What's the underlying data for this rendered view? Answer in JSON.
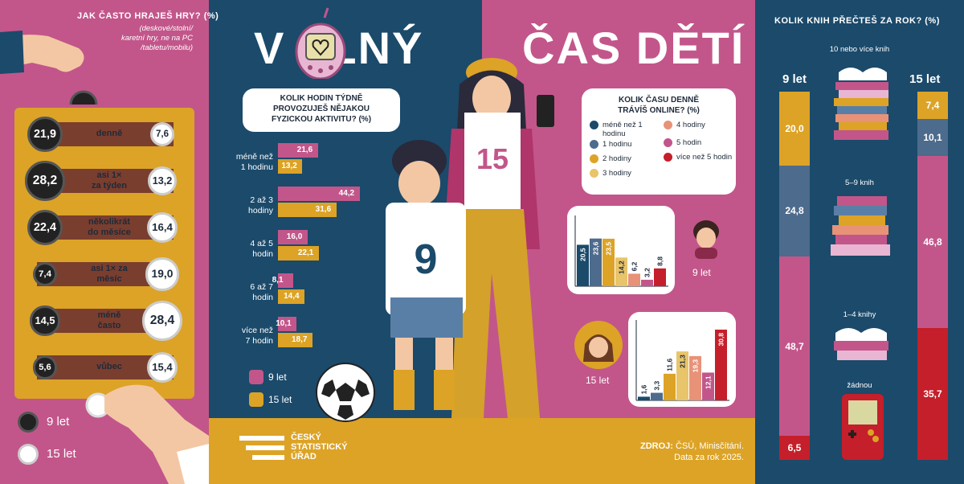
{
  "colors": {
    "navy": "#1b4a6b",
    "pink": "#c2568a",
    "gold": "#dca326",
    "red": "#c41f2a",
    "dark": "#222222",
    "light": "#ffffff"
  },
  "title": {
    "part1": "V",
    "part2": "LNÝ",
    "part3": "ČAS DĚTÍ"
  },
  "games": {
    "title": "JAK ČASTO HRAJEŠ HRY? (%)",
    "subtitle_lines": [
      "(deskové/stolní/",
      "karetní hry, ne na PC",
      "/tabletu/mobilu)"
    ],
    "legend": {
      "age9": "9 let",
      "age15": "15 let"
    }
  },
  "activity": {
    "question_lines": [
      "KOLIK HODIN TÝDNĚ",
      "PROVOZUJEŠ NĚJAKOU",
      "FYZICKOU AKTIVITU? (%)"
    ],
    "legend": {
      "age9": "9 let",
      "age15": "15 let"
    }
  },
  "online": {
    "question_lines": [
      "KOLIK ČASU DENNĚ",
      "TRÁVÍŠ ONLINE? (%)"
    ],
    "legend": [
      {
        "label": "méně než 1 hodinu",
        "color": "#1b4a6b"
      },
      {
        "label": "1 hodinu",
        "color": "#4d6b8c"
      },
      {
        "label": "2 hodiny",
        "color": "#dca326"
      },
      {
        "label": "3 hodiny",
        "color": "#e8c46a"
      },
      {
        "label": "4 hodiny",
        "color": "#e89278"
      },
      {
        "label": "5 hodin",
        "color": "#c2568a"
      },
      {
        "label": "více než 5 hodin",
        "color": "#c41f2a"
      }
    ],
    "age9_label": "9 let",
    "age15_label": "15 let"
  },
  "books": {
    "title": "KOLIK KNIH PŘEČTEŠ ZA ROK? (%)",
    "col9": "9 let",
    "col15": "15 let",
    "category_labels": [
      "10 nebo více knih",
      "5–9 knih",
      "1–4 knihy",
      "žádnou"
    ]
  },
  "footer": {
    "logo_lines": [
      "ČESKÝ",
      "STATISTICKÝ",
      "ÚŘAD"
    ],
    "source_label": "ZDROJ:",
    "source_text": "ČSÚ, Minisčítání.",
    "data_year": "Data za rok 2025."
  },
  "characters": {
    "kid9_shirt": "9",
    "kid15_shirt": "15"
  },
  "chart_data": [
    {
      "type": "table",
      "title": "JAK ČASTO HRAJEŠ HRY? (%)",
      "categories": [
        "denně",
        "asi 1× za týden",
        "několikrát do měsíce",
        "asi 1× za měsíc",
        "méně často",
        "vůbec"
      ],
      "series": [
        {
          "name": "9 let",
          "values": [
            21.9,
            28.2,
            22.4,
            7.4,
            14.5,
            5.6
          ]
        },
        {
          "name": "15 let",
          "values": [
            7.6,
            13.2,
            16.4,
            19.0,
            28.4,
            15.4
          ]
        }
      ],
      "labels9": [
        "21,9",
        "28,2",
        "22,4",
        "7,4",
        "14,5",
        "5,6"
      ],
      "labels15": [
        "7,6",
        "13,2",
        "16,4",
        "19,0",
        "28,4",
        "15,4"
      ],
      "cat_lines": [
        [
          "denně"
        ],
        [
          "asi 1×",
          "za týden"
        ],
        [
          "několikrát",
          "do měsíce"
        ],
        [
          "asi 1× za",
          "měsíc"
        ],
        [
          "méně",
          "často"
        ],
        [
          "vůbec"
        ]
      ]
    },
    {
      "type": "bar",
      "orientation": "horizontal",
      "title": "KOLIK HODIN TÝDNĚ PROVOZUJEŠ NĚJAKOU FYZICKOU AKTIVITU? (%)",
      "categories": [
        "méně než 1 hodinu",
        "2 až 3 hodiny",
        "4 až 5 hodin",
        "6 až 7 hodin",
        "více než 7 hodin"
      ],
      "cat_lines": [
        [
          "méně než",
          "1 hodinu"
        ],
        [
          "2 až 3",
          "hodiny"
        ],
        [
          "4 až 5",
          "hodin"
        ],
        [
          "6 až 7",
          "hodin"
        ],
        [
          "více než",
          "7 hodin"
        ]
      ],
      "series": [
        {
          "name": "9 let",
          "values": [
            21.6,
            44.2,
            16.0,
            8.1,
            10.1
          ],
          "labels": [
            "21,6",
            "44,2",
            "16,0",
            "8,1",
            "10,1"
          ]
        },
        {
          "name": "15 let",
          "values": [
            13.2,
            31.6,
            22.1,
            14.4,
            18.7
          ],
          "labels": [
            "13,2",
            "31,6",
            "22,1",
            "14,4",
            "18,7"
          ]
        }
      ],
      "xlim": [
        0,
        50
      ]
    },
    {
      "type": "bar",
      "title": "KOLIK ČASU DENNĚ TRÁVÍŠ ONLINE? (%) — 9 let",
      "categories": [
        "méně než 1 hodinu",
        "1 hodinu",
        "2 hodiny",
        "3 hodiny",
        "4 hodiny",
        "5 hodin",
        "více než 5 hodin"
      ],
      "values": [
        20.5,
        23.6,
        23.5,
        14.2,
        6.2,
        3.2,
        8.8
      ],
      "labels": [
        "20,5",
        "23,6",
        "23,5",
        "14,2",
        "6,2",
        "3,2",
        "8,8"
      ],
      "ylim": [
        0,
        35
      ]
    },
    {
      "type": "bar",
      "title": "KOLIK ČASU DENNĚ TRÁVÍŠ ONLINE? (%) — 15 let",
      "categories": [
        "méně než 1 hodinu",
        "1 hodinu",
        "2 hodiny",
        "3 hodiny",
        "4 hodiny",
        "5 hodin",
        "více než 5 hodin"
      ],
      "values": [
        1.6,
        3.3,
        11.6,
        21.3,
        19.3,
        12.1,
        30.8
      ],
      "labels": [
        "1,6",
        "3,3",
        "11,6",
        "21,3",
        "19,3",
        "12,1",
        "30,8"
      ],
      "ylim": [
        0,
        35
      ]
    },
    {
      "type": "bar",
      "stacked": true,
      "title": "KOLIK KNIH PŘEČTEŠ ZA ROK? (%)",
      "categories": [
        "10 nebo více knih",
        "5–9 knih",
        "1–4 knihy",
        "žádnou"
      ],
      "series": [
        {
          "name": "9 let",
          "values": [
            20.0,
            24.8,
            48.7,
            6.5
          ],
          "labels": [
            "20,0",
            "24,8",
            "48,7",
            "6,5"
          ]
        },
        {
          "name": "15 let",
          "values": [
            7.4,
            10.1,
            46.8,
            35.7
          ],
          "labels": [
            "7,4",
            "10,1",
            "46,8",
            "35,7"
          ]
        }
      ],
      "colors": [
        "#dca326",
        "#4d6b8c",
        "#c2568a",
        "#c41f2a"
      ]
    }
  ]
}
